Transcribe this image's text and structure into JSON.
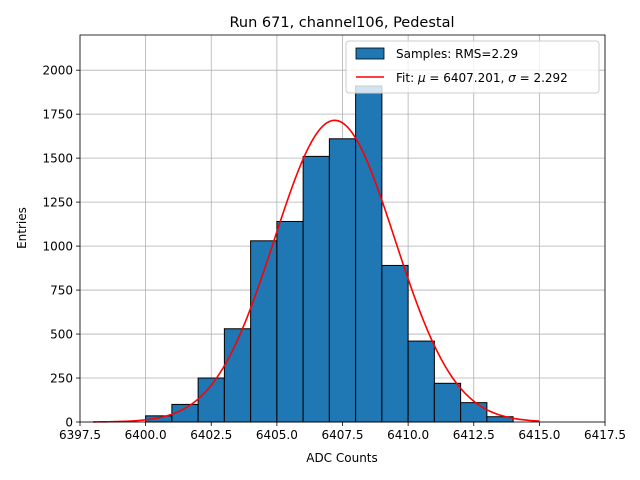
{
  "chart_data": {
    "type": "bar",
    "title": "Run 671, channel106, Pedestal",
    "xlabel": "ADC Counts",
    "ylabel": "Entries",
    "xlim": [
      6397.5,
      6417.5
    ],
    "ylim": [
      0,
      2200
    ],
    "grid": true,
    "legend_position": "top-right",
    "x_ticks": [
      6397.5,
      6400.0,
      6402.5,
      6405.0,
      6407.5,
      6410.0,
      6412.5,
      6415.0,
      6417.5
    ],
    "x_tick_labels": [
      "6397.5",
      "6400.0",
      "6402.5",
      "6405.0",
      "6407.5",
      "6410.0",
      "6412.5",
      "6415.0",
      "6417.5"
    ],
    "y_ticks": [
      0,
      250,
      500,
      750,
      1000,
      1250,
      1500,
      1750,
      2000
    ],
    "y_tick_labels": [
      "0",
      "250",
      "500",
      "750",
      "1000",
      "1250",
      "1500",
      "1750",
      "2000"
    ],
    "bin_edges": [
      6400.0,
      6401.0,
      6402.0,
      6403.0,
      6404.0,
      6405.0,
      6406.0,
      6407.0,
      6408.0,
      6409.0,
      6410.0,
      6411.0,
      6412.0,
      6413.0,
      6414.0
    ],
    "series": [
      {
        "name": "Samples: RMS=2.29",
        "kind": "histogram",
        "color": "#1f77b4",
        "values": [
          35,
          100,
          250,
          530,
          1030,
          1140,
          1510,
          1610,
          1910,
          890,
          460,
          220,
          110,
          30
        ]
      },
      {
        "name": "Fit: μ = 6407.201, σ = 2.292",
        "kind": "gaussian-fit",
        "color": "#ff0000",
        "mu": 6407.201,
        "sigma": 2.292,
        "amplitude": 1715,
        "x_range": [
          6398.0,
          6415.0
        ]
      }
    ],
    "legend": [
      {
        "label_prefix": "Samples: RMS=2.29",
        "label_suffix": "",
        "symbol": "patch"
      },
      {
        "label_prefix": "Fit: ",
        "mu_symbol": "μ",
        "mu_text": " = 6407.201, ",
        "sigma_symbol": "σ",
        "sigma_text": " = 2.292",
        "symbol": "line"
      }
    ]
  }
}
